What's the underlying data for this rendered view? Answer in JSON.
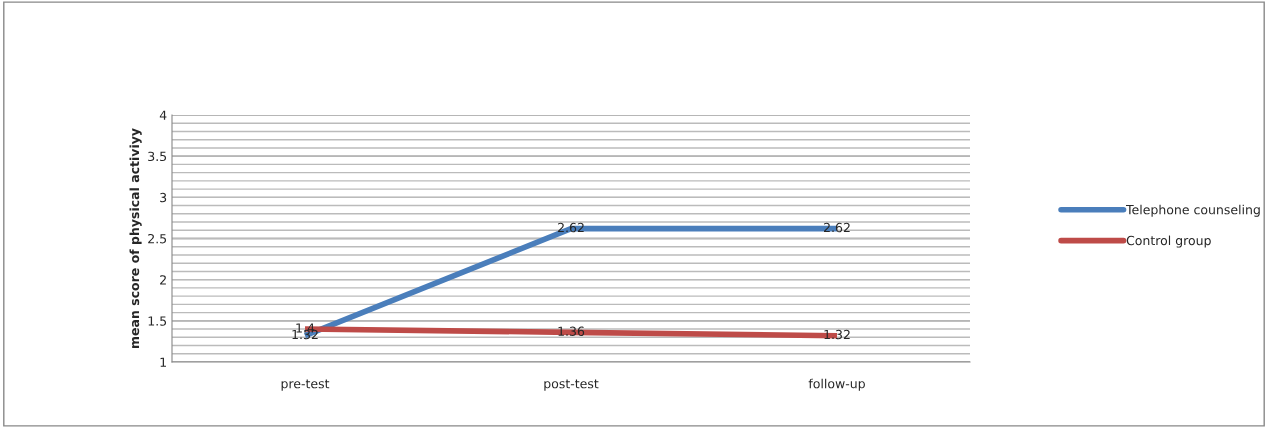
{
  "chart_data": {
    "type": "line",
    "ylabel": "mean score of physical activiyy",
    "categories": [
      "pre-test",
      "post-test",
      "follow-up"
    ],
    "series": [
      {
        "name": "Telephone counseling",
        "color": "#4a7ebb",
        "values": [
          1.32,
          2.62,
          2.62
        ]
      },
      {
        "name": "Control group",
        "color": "#be4b48",
        "values": [
          1.4,
          1.36,
          1.32
        ]
      }
    ],
    "ylim": [
      1,
      4
    ],
    "yticks": [
      1,
      1.5,
      2,
      2.5,
      3,
      3.5,
      4
    ],
    "grid": "y",
    "legend": "right",
    "data_labels": true,
    "marker": "none",
    "line_style": "solid"
  }
}
